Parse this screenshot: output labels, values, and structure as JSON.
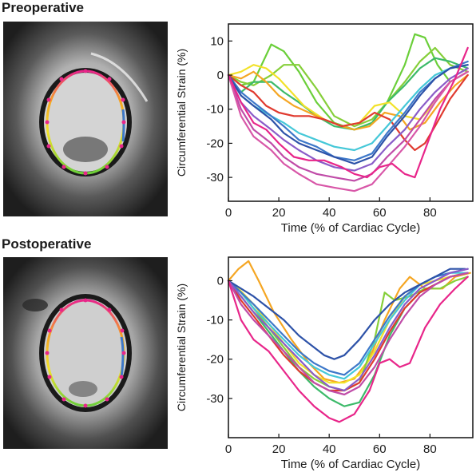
{
  "panels": [
    {
      "title": "Preoperative"
    },
    {
      "title": "Postoperative"
    }
  ],
  "chart_data": [
    {
      "type": "line",
      "title": "",
      "xlabel": "Time (% of Cardiac Cycle)",
      "ylabel": "Circumferential Strain (%)",
      "xlim": [
        0,
        97
      ],
      "ylim": [
        -37,
        15
      ],
      "xticks": [
        0,
        20,
        40,
        60,
        80
      ],
      "yticks": [
        10,
        0,
        -10,
        -20,
        -30
      ],
      "grid": false,
      "series": [
        {
          "color": "#6bcf3a",
          "x": [
            0,
            5,
            10,
            17,
            22,
            28,
            35,
            42,
            50,
            57,
            63,
            70,
            74,
            78,
            83,
            88,
            95
          ],
          "y": [
            0,
            -3,
            -2,
            9,
            7,
            1,
            -8,
            -14,
            -16,
            -14,
            -8,
            3,
            12,
            11,
            3,
            -2,
            1
          ]
        },
        {
          "color": "#86cf3a",
          "x": [
            0,
            5,
            10,
            17,
            22,
            28,
            35,
            42,
            50,
            57,
            63,
            70,
            76,
            82,
            88,
            95
          ],
          "y": [
            0,
            -2,
            -3,
            0,
            3,
            3,
            -4,
            -12,
            -15,
            -13,
            -8,
            -2,
            4,
            8,
            3,
            1
          ]
        },
        {
          "color": "#3dba6a",
          "x": [
            0,
            5,
            10,
            17,
            22,
            28,
            35,
            42,
            50,
            57,
            63,
            70,
            76,
            82,
            88,
            95
          ],
          "y": [
            0,
            -5,
            -2,
            -2,
            -5,
            -8,
            -12,
            -15,
            -16,
            -14,
            -8,
            -3,
            2,
            5,
            4,
            2
          ]
        },
        {
          "color": "#f2e22a",
          "x": [
            0,
            5,
            10,
            15,
            20,
            25,
            30,
            38,
            45,
            52,
            58,
            64,
            70,
            76,
            82,
            88,
            95
          ],
          "y": [
            0,
            1,
            3,
            2,
            -1,
            -5,
            -9,
            -13,
            -15,
            -14,
            -9,
            -8,
            -12,
            -13,
            -8,
            -2,
            1
          ]
        },
        {
          "color": "#f5a623",
          "x": [
            0,
            5,
            10,
            15,
            20,
            26,
            32,
            38,
            45,
            50,
            56,
            62,
            68,
            72,
            78,
            84,
            90,
            95
          ],
          "y": [
            0,
            -1,
            1,
            -2,
            -6,
            -9,
            -11,
            -13,
            -15,
            -16,
            -15,
            -11,
            -12,
            -16,
            -14,
            -8,
            -3,
            0
          ]
        },
        {
          "color": "#e03a2f",
          "x": [
            0,
            5,
            10,
            15,
            20,
            26,
            32,
            38,
            45,
            52,
            58,
            64,
            70,
            74,
            78,
            82,
            88,
            95
          ],
          "y": [
            0,
            -3,
            -5,
            -9,
            -11,
            -12,
            -12,
            -13,
            -15,
            -14,
            -11,
            -13,
            -19,
            -22,
            -20,
            -15,
            -7,
            0
          ]
        },
        {
          "color": "#45c8d8",
          "x": [
            0,
            5,
            10,
            17,
            22,
            28,
            35,
            42,
            50,
            57,
            63,
            70,
            76,
            82,
            88,
            95
          ],
          "y": [
            0,
            -6,
            -9,
            -12,
            -14,
            -17,
            -19,
            -21,
            -22,
            -20,
            -15,
            -9,
            -4,
            0,
            2,
            3
          ]
        },
        {
          "color": "#3d78c9",
          "x": [
            0,
            5,
            10,
            17,
            22,
            28,
            35,
            42,
            50,
            57,
            63,
            70,
            76,
            82,
            88,
            95
          ],
          "y": [
            0,
            -5,
            -8,
            -12,
            -15,
            -19,
            -21,
            -24,
            -25,
            -23,
            -17,
            -11,
            -5,
            -1,
            2,
            4
          ]
        },
        {
          "color": "#2d52a8",
          "x": [
            0,
            5,
            10,
            17,
            22,
            28,
            35,
            42,
            50,
            57,
            63,
            70,
            76,
            82,
            88,
            95
          ],
          "y": [
            0,
            -6,
            -9,
            -13,
            -17,
            -20,
            -22,
            -24,
            -26,
            -24,
            -18,
            -12,
            -6,
            -1,
            2,
            3
          ]
        },
        {
          "color": "#8a5cc8",
          "x": [
            0,
            5,
            10,
            17,
            22,
            28,
            35,
            42,
            50,
            57,
            63,
            70,
            76,
            82,
            88,
            95
          ],
          "y": [
            0,
            -8,
            -12,
            -16,
            -19,
            -22,
            -25,
            -27,
            -28,
            -26,
            -21,
            -16,
            -10,
            -5,
            -1,
            2
          ]
        },
        {
          "color": "#c04ca8",
          "x": [
            0,
            5,
            10,
            17,
            22,
            28,
            35,
            42,
            50,
            57,
            63,
            70,
            76,
            82,
            88,
            95
          ],
          "y": [
            0,
            -10,
            -16,
            -20,
            -24,
            -27,
            -29,
            -30,
            -31,
            -29,
            -24,
            -19,
            -13,
            -7,
            -2,
            1
          ]
        },
        {
          "color": "#d857a8",
          "x": [
            0,
            5,
            10,
            17,
            22,
            28,
            35,
            42,
            50,
            57,
            63,
            70,
            76,
            82,
            88,
            95
          ],
          "y": [
            0,
            -12,
            -18,
            -22,
            -26,
            -29,
            -32,
            -33,
            -34,
            -32,
            -27,
            -21,
            -15,
            -8,
            -2,
            1
          ]
        },
        {
          "color": "#e8268a",
          "x": [
            0,
            5,
            10,
            15,
            20,
            26,
            32,
            38,
            45,
            50,
            55,
            60,
            65,
            70,
            74,
            78,
            84,
            90,
            95
          ],
          "y": [
            0,
            -8,
            -14,
            -16,
            -20,
            -24,
            -25,
            -25,
            -27,
            -29,
            -30,
            -27,
            -26,
            -29,
            -30,
            -22,
            -10,
            -1,
            8
          ]
        }
      ]
    },
    {
      "type": "line",
      "title": "",
      "xlabel": "Time (% of Cardiac Cycle)",
      "ylabel": "Circumferential Strain (%)",
      "xlim": [
        0,
        97
      ],
      "ylim": [
        -40,
        6
      ],
      "xticks": [
        0,
        20,
        40,
        60,
        80
      ],
      "yticks": [
        0,
        -10,
        -20,
        -30
      ],
      "grid": false,
      "series": [
        {
          "color": "#f5a623",
          "x": [
            0,
            4,
            8,
            12,
            18,
            25,
            32,
            38,
            44,
            50,
            56,
            62,
            68,
            72,
            78,
            85,
            90,
            96
          ],
          "y": [
            0,
            3,
            5,
            0,
            -8,
            -15,
            -21,
            -25,
            -26,
            -25,
            -20,
            -10,
            -2,
            1,
            -2,
            -2,
            1,
            2
          ]
        },
        {
          "color": "#f2e22a",
          "x": [
            0,
            4,
            10,
            16,
            22,
            28,
            34,
            40,
            46,
            52,
            58,
            64,
            70,
            76,
            82,
            88,
            94
          ],
          "y": [
            0,
            -2,
            -6,
            -11,
            -16,
            -21,
            -24,
            -26,
            -26,
            -24,
            -18,
            -10,
            -4,
            -1,
            0,
            1,
            2
          ]
        },
        {
          "color": "#86cf3a",
          "x": [
            0,
            5,
            10,
            16,
            22,
            28,
            34,
            40,
            46,
            52,
            58,
            62,
            66,
            72,
            78,
            84,
            90,
            95
          ],
          "y": [
            0,
            -3,
            -7,
            -12,
            -17,
            -22,
            -25,
            -27,
            -28,
            -26,
            -15,
            -3,
            -5,
            -4,
            -2,
            -2,
            0,
            1
          ]
        },
        {
          "color": "#3dba6a",
          "x": [
            0,
            5,
            10,
            16,
            22,
            28,
            34,
            40,
            46,
            52,
            58,
            64,
            70,
            76,
            82,
            88,
            95
          ],
          "y": [
            0,
            -4,
            -8,
            -13,
            -18,
            -23,
            -27,
            -30,
            -32,
            -31,
            -24,
            -14,
            -7,
            -3,
            -1,
            1,
            2
          ]
        },
        {
          "color": "#e03a2f",
          "x": [
            0,
            5,
            10,
            16,
            22,
            28,
            34,
            40,
            46,
            52,
            58,
            64,
            70,
            76,
            82,
            88,
            95
          ],
          "y": [
            0,
            -5,
            -9,
            -14,
            -19,
            -23,
            -26,
            -28,
            -28,
            -26,
            -20,
            -13,
            -7,
            -3,
            -1,
            1,
            2
          ]
        },
        {
          "color": "#45c8d8",
          "x": [
            0,
            5,
            10,
            16,
            22,
            28,
            34,
            40,
            46,
            52,
            58,
            64,
            70,
            76,
            82,
            88,
            95
          ],
          "y": [
            0,
            -3,
            -7,
            -11,
            -15,
            -19,
            -22,
            -24,
            -25,
            -22,
            -16,
            -10,
            -5,
            -1,
            1,
            2,
            2
          ]
        },
        {
          "color": "#3d78c9",
          "x": [
            0,
            5,
            10,
            16,
            22,
            28,
            34,
            40,
            46,
            52,
            58,
            64,
            70,
            76,
            82,
            88,
            95
          ],
          "y": [
            0,
            -3,
            -6,
            -10,
            -14,
            -18,
            -21,
            -23,
            -24,
            -21,
            -15,
            -9,
            -4,
            -1,
            1,
            2,
            3
          ]
        },
        {
          "color": "#2d52a8",
          "x": [
            0,
            5,
            10,
            16,
            22,
            28,
            34,
            38,
            42,
            46,
            52,
            58,
            64,
            70,
            76,
            82,
            88,
            94
          ],
          "y": [
            0,
            -2,
            -4,
            -7,
            -10,
            -14,
            -17,
            -19,
            -20,
            -19,
            -15,
            -10,
            -6,
            -3,
            -1,
            1,
            3,
            3
          ]
        },
        {
          "color": "#8a5cc8",
          "x": [
            0,
            5,
            10,
            16,
            22,
            28,
            34,
            40,
            46,
            52,
            58,
            64,
            70,
            76,
            82,
            88,
            95
          ],
          "y": [
            0,
            -4,
            -8,
            -12,
            -16,
            -20,
            -24,
            -27,
            -28,
            -25,
            -19,
            -12,
            -6,
            -2,
            0,
            2,
            3
          ]
        },
        {
          "color": "#c04ca8",
          "x": [
            0,
            5,
            10,
            16,
            22,
            28,
            34,
            40,
            46,
            52,
            58,
            64,
            70,
            76,
            82,
            88,
            95
          ],
          "y": [
            0,
            -6,
            -10,
            -14,
            -18,
            -22,
            -26,
            -28,
            -29,
            -27,
            -22,
            -15,
            -9,
            -4,
            -1,
            1,
            2
          ]
        },
        {
          "color": "#e8268a",
          "x": [
            0,
            5,
            10,
            16,
            22,
            28,
            34,
            40,
            44,
            50,
            56,
            60,
            64,
            68,
            72,
            78,
            84,
            90,
            95
          ],
          "y": [
            0,
            -10,
            -15,
            -18,
            -23,
            -28,
            -32,
            -35,
            -36,
            -34,
            -28,
            -21,
            -20,
            -22,
            -21,
            -12,
            -6,
            -2,
            1
          ]
        }
      ]
    }
  ]
}
